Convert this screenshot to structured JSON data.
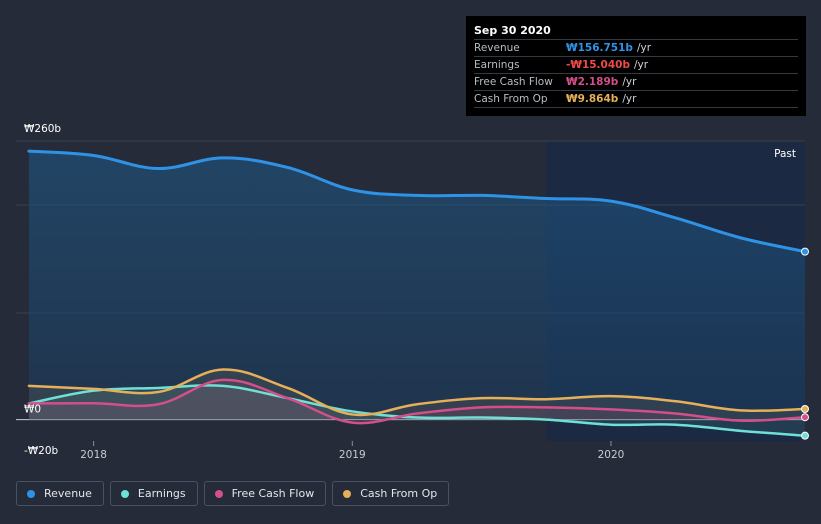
{
  "tooltip": {
    "date": "Sep 30 2020",
    "rows": [
      {
        "label": "Revenue",
        "value": "₩156.751b",
        "unit": "/yr",
        "color": "#2e93e6"
      },
      {
        "label": "Earnings",
        "value": "-₩15.040b",
        "unit": "/yr",
        "color": "#ef4a4a"
      },
      {
        "label": "Free Cash Flow",
        "value": "₩2.189b",
        "unit": "/yr",
        "color": "#d44f8a"
      },
      {
        "label": "Cash From Op",
        "value": "₩9.864b",
        "unit": "/yr",
        "color": "#e6b05a"
      }
    ]
  },
  "past_label": "Past",
  "legend": [
    {
      "label": "Revenue",
      "color": "#2e93e6"
    },
    {
      "label": "Earnings",
      "color": "#6fe0d5"
    },
    {
      "label": "Free Cash Flow",
      "color": "#d44f8a"
    },
    {
      "label": "Cash From Op",
      "color": "#e6b05a"
    }
  ],
  "chart_data": {
    "type": "area",
    "title": "",
    "y_tick_labels": [
      "₩260b",
      "₩0",
      "-₩20b"
    ],
    "x_tick_labels": [
      "2018",
      "2019",
      "2020"
    ],
    "ylim": [
      -20,
      260
    ],
    "xlim": [
      2017.7,
      2020.75
    ],
    "series": [
      {
        "name": "Revenue",
        "color": "#2e93e6",
        "x": [
          2017.75,
          2018.0,
          2018.25,
          2018.5,
          2018.75,
          2019.0,
          2019.25,
          2019.5,
          2019.75,
          2020.0,
          2020.25,
          2020.5,
          2020.75
        ],
        "values": [
          250.5,
          246.5,
          234.3,
          244.2,
          235.3,
          214.4,
          209.2,
          209.2,
          206.3,
          203.9,
          188.2,
          169.7,
          156.751
        ]
      },
      {
        "name": "Earnings",
        "color": "#6fe0d5",
        "x": [
          2017.75,
          2018.0,
          2018.25,
          2018.5,
          2018.75,
          2019.0,
          2019.25,
          2019.5,
          2019.75,
          2020.0,
          2020.25,
          2020.5,
          2020.75
        ],
        "values": [
          15,
          27,
          29.5,
          31.4,
          20,
          7.6,
          1.9,
          1.9,
          0,
          -4.8,
          -4.8,
          -10.5,
          -15.04
        ]
      },
      {
        "name": "Free Cash Flow",
        "color": "#d44f8a",
        "x": [
          2017.75,
          2018.0,
          2018.25,
          2018.5,
          2018.75,
          2019.0,
          2019.25,
          2019.5,
          2019.75,
          2020.0,
          2020.25,
          2020.5,
          2020.75
        ],
        "values": [
          15,
          15.2,
          14.3,
          37,
          20,
          -2.8,
          5.7,
          11.4,
          11.4,
          9.5,
          5.7,
          -1,
          2.189
        ]
      },
      {
        "name": "Cash From Op",
        "color": "#e6b05a",
        "x": [
          2017.75,
          2018.0,
          2018.25,
          2018.5,
          2018.75,
          2019.0,
          2019.25,
          2019.5,
          2019.75,
          2020.0,
          2020.25,
          2020.5,
          2020.75
        ],
        "values": [
          31.4,
          28.6,
          25.7,
          46.7,
          29.5,
          4.8,
          14.3,
          20,
          19,
          21.9,
          17.1,
          8.6,
          9.864
        ]
      }
    ],
    "past_region_start": 2019.75
  }
}
